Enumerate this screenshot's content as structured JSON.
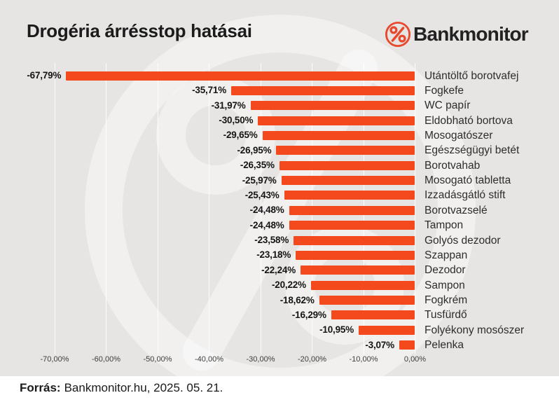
{
  "header": {
    "title": "Drogéria árrésstop hatásai",
    "brand_name": "Bankmonitor",
    "brand_color": "#e8492c"
  },
  "chart_data": {
    "type": "bar",
    "orientation": "horizontal",
    "title": "Drogéria árrésstop hatásai",
    "unit": "%",
    "grid": true,
    "xlim": [
      -75,
      5
    ],
    "bar_color": "#f3491d",
    "categories": [
      "Utántöltő borotvafej",
      "Fogkefe",
      "WC papír",
      "Eldobható bortova",
      "Mosogatószer",
      "Egészségügyi betét",
      "Borotvahab",
      "Mosogató tabletta",
      "Izzadásgátló stift",
      "Borotvazselé",
      "Tampon",
      "Golyós dezodor",
      "Szappan",
      "Dezodor",
      "Sampon",
      "Fogkrém",
      "Tusfürdő",
      "Folyékony mosószer",
      "Pelenka"
    ],
    "values": [
      -67.79,
      -35.71,
      -31.97,
      -30.5,
      -29.65,
      -26.95,
      -26.35,
      -25.97,
      -25.43,
      -24.48,
      -24.48,
      -23.58,
      -23.18,
      -22.24,
      -20.22,
      -18.62,
      -16.29,
      -10.95,
      -3.07
    ],
    "value_labels": [
      "-67,79%",
      "-35,71%",
      "-31,97%",
      "-30,50%",
      "-29,65%",
      "-26,95%",
      "-26,35%",
      "-25,97%",
      "-25,43%",
      "-24,48%",
      "-24,48%",
      "-23,58%",
      "-23,18%",
      "-22,24%",
      "-20,22%",
      "-18,62%",
      "-16,29%",
      "-10,95%",
      "-3,07%"
    ],
    "x_ticks": [
      -70,
      -60,
      -50,
      -40,
      -30,
      -20,
      -10,
      0
    ],
    "x_tick_labels": [
      "-70,00%",
      "-60,00%",
      "-50,00%",
      "-40,00%",
      "-30,00%",
      "-20,00%",
      "-10,00%",
      "0,00%"
    ]
  },
  "footer": {
    "source_label": "Forrás:",
    "source_text": "Bankmonitor.hu, 2025. 05. 21."
  }
}
